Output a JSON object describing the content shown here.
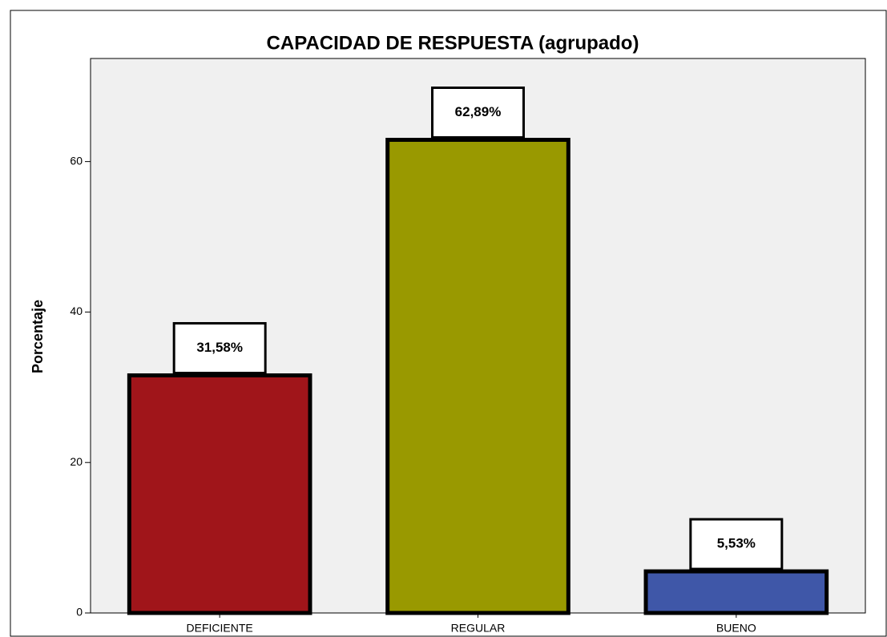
{
  "chart_data": {
    "type": "bar",
    "title": "CAPACIDAD DE RESPUESTA (agrupado)",
    "y_label": "Porcentaje",
    "categories": [
      "DEFICIENTE",
      "REGULAR",
      "BUENO"
    ],
    "values": [
      31.58,
      62.89,
      5.53
    ],
    "value_labels": [
      "31,58%",
      "62,89%",
      "5,53%"
    ],
    "colors": [
      "#a0151a",
      "#999900",
      "#3f57a8"
    ],
    "ylim": [
      0,
      73.7
    ],
    "yticks": [
      0,
      20,
      40,
      60
    ],
    "grid": false
  }
}
